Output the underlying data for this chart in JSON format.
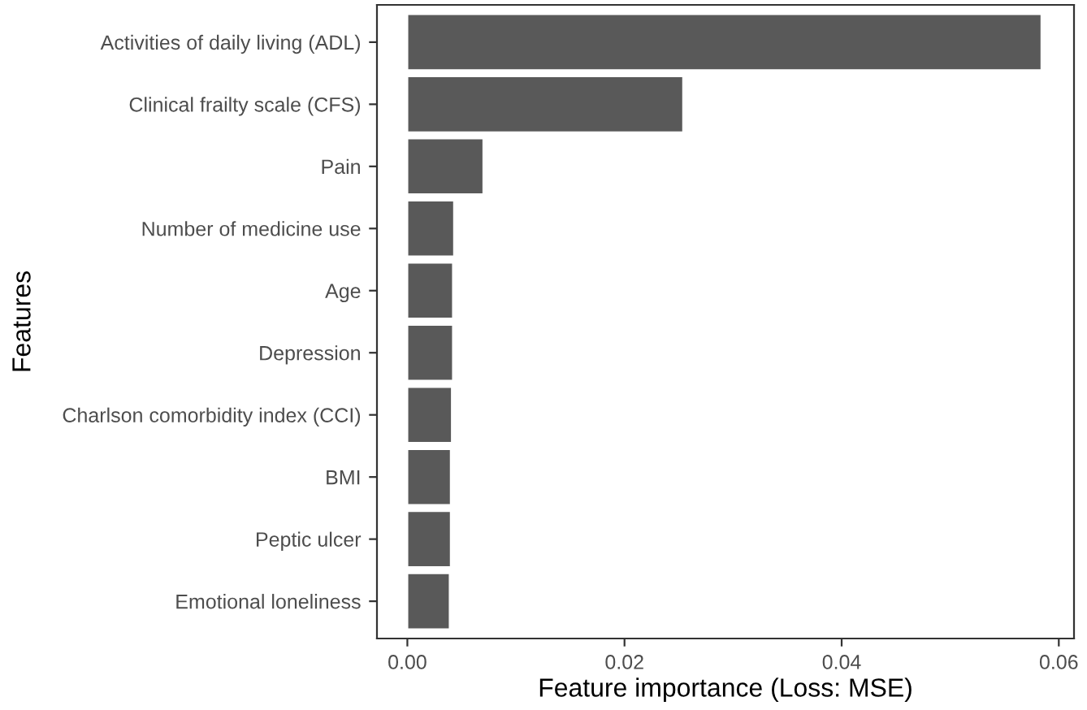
{
  "chart_data": {
    "type": "bar",
    "orientation": "horizontal",
    "xlabel": "Feature importance (Loss: MSE)",
    "ylabel": "Features",
    "categories": [
      "Activities of daily living (ADL)",
      "Clinical frailty scale (CFS)",
      "Pain",
      "Number of medicine use",
      "Age",
      "Depression",
      "Charlson comorbidity index (CCI)",
      "BMI",
      "Peptic ulcer",
      "Emotional loneliness"
    ],
    "values": [
      0.0584,
      0.0254,
      0.007,
      0.0043,
      0.0042,
      0.0042,
      0.0041,
      0.004,
      0.004,
      0.0039
    ],
    "color": "#595959",
    "xlim": [
      -0.0028,
      0.0614
    ],
    "xticks": [
      {
        "value": 0,
        "label": "0.00"
      },
      {
        "value": 0.02,
        "label": "0.02"
      },
      {
        "value": 0.04,
        "label": "0.04"
      },
      {
        "value": 0.06,
        "label": "0.06"
      }
    ],
    "grid": false
  }
}
